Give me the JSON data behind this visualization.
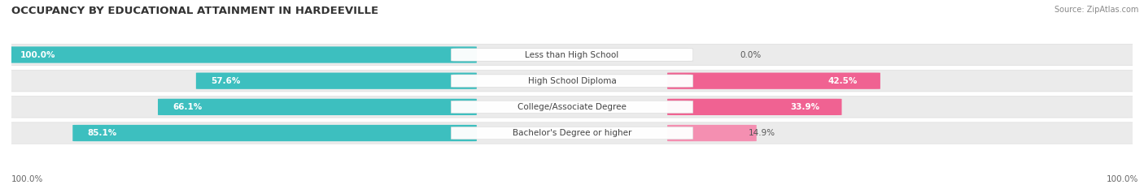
{
  "title": "OCCUPANCY BY EDUCATIONAL ATTAINMENT IN HARDEEVILLE",
  "source": "Source: ZipAtlas.com",
  "categories": [
    "Less than High School",
    "High School Diploma",
    "College/Associate Degree",
    "Bachelor's Degree or higher"
  ],
  "owner_pct": [
    100.0,
    57.6,
    66.1,
    85.1
  ],
  "renter_pct": [
    0.0,
    42.5,
    33.9,
    14.9
  ],
  "owner_color": "#3dbfbf",
  "renter_color": "#f06292",
  "renter_color_small": "#f48fb1",
  "row_bg_color": "#eeeeee",
  "title_fontsize": 9.5,
  "label_fontsize": 7.5,
  "cat_fontsize": 7.5,
  "tick_fontsize": 7.5,
  "figsize": [
    14.06,
    2.33
  ],
  "dpi": 100
}
